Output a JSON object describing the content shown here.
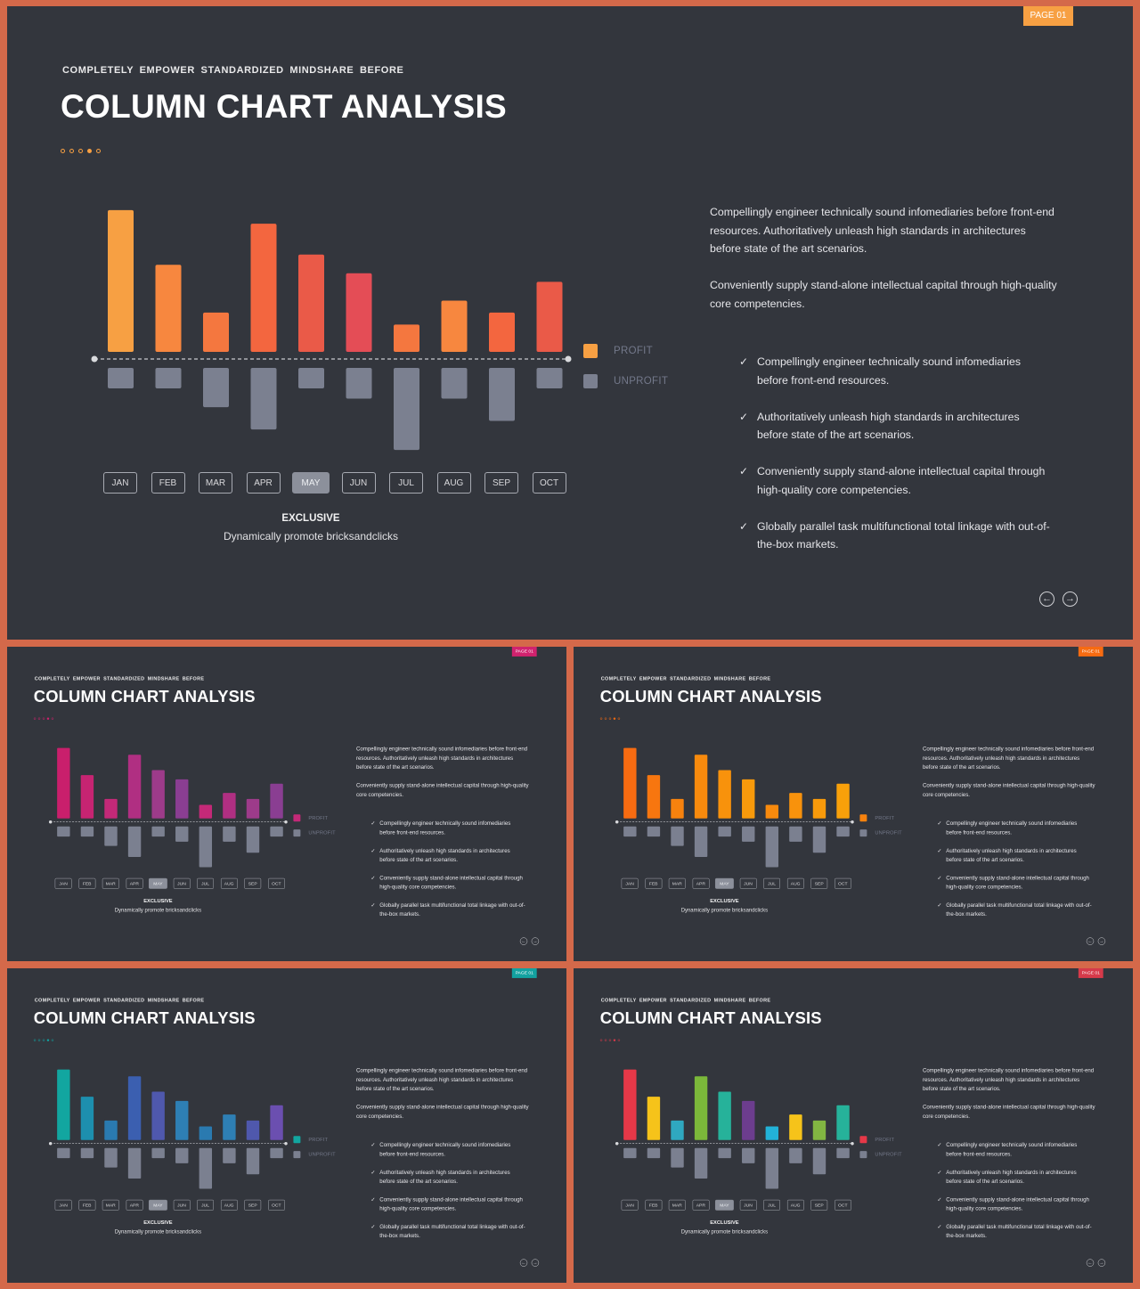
{
  "slide_text": {
    "kicker": "COMPLETELY  EMPOWER  STANDARDIZED  MINDSHARE  BEFORE",
    "title": "COLUMN CHART ANALYSIS",
    "page_badge": "PAGE 01",
    "legend": {
      "profit": "PROFIT",
      "unprofit": "UNPROFIT"
    },
    "exclusive_title": "EXCLUSIVE",
    "exclusive_subtitle": "Dynamically promote bricksandclicks",
    "paragraph_1": "Compellingly engineer technically sound infomediaries before front-end resources. Authoritatively unleash high standards in architectures before state of the art scenarios.",
    "paragraph_2": "Conveniently supply stand-alone intellectual capital through high-quality core competencies.",
    "bullets": [
      "Compellingly engineer technically sound infomediaries before front-end resources.",
      "Authoritatively unleash high standards in architectures before state of the art scenarios.",
      "Conveniently supply stand-alone intellectual capital through high-quality core competencies.",
      "Globally parallel task multifunctional total linkage with out-of-the-box markets."
    ],
    "active_month": "MAY",
    "check_icon": "✓",
    "nav_prev_icon": "←",
    "nav_next_icon": "→"
  },
  "chart_data": {
    "type": "bar",
    "categories": [
      "JAN",
      "FEB",
      "MAR",
      "APR",
      "MAY",
      "JUN",
      "JUL",
      "AUG",
      "SEP",
      "OCT"
    ],
    "series": [
      {
        "name": "PROFIT",
        "values": [
          8.3,
          5.1,
          2.3,
          7.5,
          5.7,
          4.6,
          1.6,
          3.0,
          2.3,
          4.1
        ]
      },
      {
        "name": "UNPROFIT",
        "values": [
          -1.2,
          -1.2,
          -2.3,
          -3.6,
          -1.2,
          -1.8,
          -4.8,
          -1.8,
          -3.1,
          -1.2
        ]
      }
    ],
    "ylim": [
      -5,
      8.5
    ],
    "grid": false,
    "legend_position": "right"
  },
  "themes": [
    {
      "name": "main",
      "badge": "#f7a043",
      "dots": "#f7a043",
      "profit_colors": [
        "#f7a043",
        "#f7873f",
        "#f4773f",
        "#f3663f",
        "#ea5a48",
        "#e44d56",
        "#f4773f",
        "#f7873f",
        "#f3663f",
        "#ea5a48"
      ],
      "legend_profit": "#f7a043",
      "unprofit": "#7b8090"
    },
    {
      "name": "magenta",
      "badge": "#d1226e",
      "dots": "#d1226e",
      "profit_colors": [
        "#c91f6c",
        "#c62472",
        "#c42978",
        "#b02f82",
        "#9d3b8a",
        "#8a3e92",
        "#c42978",
        "#b02f82",
        "#9d3b8a",
        "#8a3e92"
      ],
      "legend_profit": "#c42978",
      "unprofit": "#7b8090"
    },
    {
      "name": "orange",
      "badge": "#f76b11",
      "dots": "#f76b11",
      "profit_colors": [
        "#f76b11",
        "#f7760f",
        "#f7820e",
        "#f88a0d",
        "#f8920c",
        "#f89a0b",
        "#f88a0d",
        "#f8920c",
        "#f89a0b",
        "#f8a00a"
      ],
      "legend_profit": "#f7820e",
      "unprofit": "#7b8090"
    },
    {
      "name": "teal",
      "badge": "#13a2a0",
      "dots": "#13a2a0",
      "profit_colors": [
        "#12a6a0",
        "#1d8fae",
        "#2a7ab0",
        "#3b5fb0",
        "#4f58ad",
        "#2e7fb4",
        "#2a7ab0",
        "#2e7fb4",
        "#4f58ad",
        "#6b4fb0"
      ],
      "legend_profit": "#12a6a0",
      "unprofit": "#7b8090"
    },
    {
      "name": "multi",
      "badge": "#d63a4a",
      "dots": "#d63a4a",
      "profit_colors": [
        "#e63848",
        "#f6c31a",
        "#2fa8c0",
        "#7bb83a",
        "#26b29a",
        "#6c3d8e",
        "#22b2d8",
        "#f6c31a",
        "#82b642",
        "#26b29a"
      ],
      "legend_profit": "#e63848",
      "unprofit": "#7b8090"
    }
  ]
}
